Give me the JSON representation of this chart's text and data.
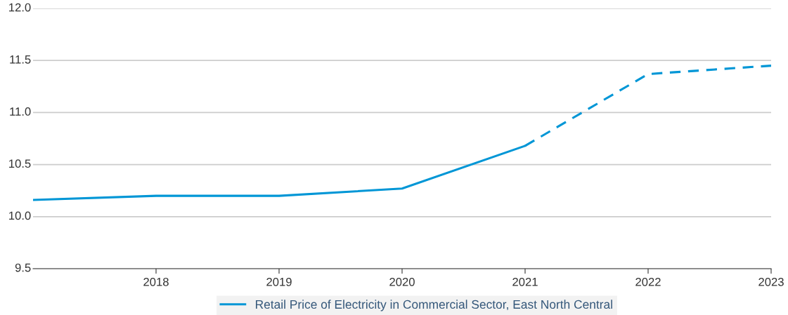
{
  "chart_data": {
    "type": "line",
    "xlim": [
      2017,
      2023
    ],
    "xticks": [
      2018,
      2019,
      2020,
      2021,
      2022,
      2023
    ],
    "ylim": [
      9.5,
      12.0
    ],
    "yticks": [
      {
        "value": 9.5,
        "label": "9.5"
      },
      {
        "value": 10.0,
        "label": "10.0"
      },
      {
        "value": 10.5,
        "label": "10.5"
      },
      {
        "value": 11.0,
        "label": "11.0"
      },
      {
        "value": 11.5,
        "label": "11.5"
      },
      {
        "value": 12.0,
        "label": "12.0"
      }
    ],
    "grid": "y",
    "legend": "bottom",
    "marker": "none",
    "series": [
      {
        "name": "Retail Price of Electricity in Commercial Sector, East North Central",
        "color": "#0096d6",
        "line_style": "solid",
        "x": [
          2017,
          2018,
          2019,
          2020,
          2021
        ],
        "values": [
          10.16,
          10.2,
          10.2,
          10.27,
          10.68
        ]
      },
      {
        "color": "#0096d6",
        "line_style": "dashed",
        "x": [
          2021,
          2022,
          2023
        ],
        "values": [
          10.68,
          11.37,
          11.45
        ]
      }
    ]
  }
}
